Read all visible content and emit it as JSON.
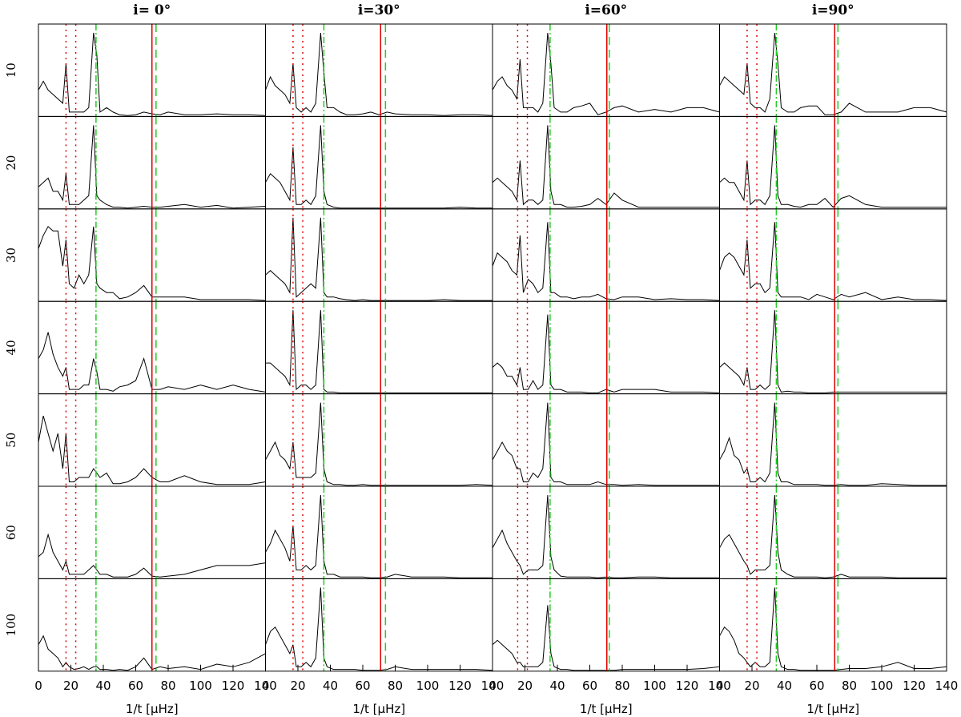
{
  "chart_data": {
    "type": "line",
    "line_color": "#000000",
    "x": [
      0,
      3,
      6,
      9,
      12,
      15,
      17,
      19,
      22,
      25,
      28,
      31,
      34,
      36,
      38,
      42,
      46,
      50,
      55,
      60,
      65,
      70,
      75,
      80,
      90,
      100,
      110,
      120,
      130,
      140
    ],
    "xlim": [
      0,
      140
    ],
    "xticks": [
      0,
      20,
      40,
      60,
      80,
      100,
      120,
      140
    ],
    "ylim": [
      0,
      1.05
    ],
    "xlabel": "1/t [μHz]",
    "columns": [
      {
        "title": "i= 0°",
        "vlines": [
          {
            "x": 17,
            "style": "dotted",
            "color": "#e00000"
          },
          {
            "x": 23,
            "style": "dotted",
            "color": "#e00000"
          },
          {
            "x": 35.5,
            "style": "dashdot",
            "color": "#22cc22"
          },
          {
            "x": 70,
            "style": "solid",
            "color": "#e00000"
          },
          {
            "x": 72.5,
            "style": "dashed",
            "color": "#22cc22"
          }
        ]
      },
      {
        "title": "i=30°",
        "vlines": [
          {
            "x": 17,
            "style": "dotted",
            "color": "#e00000"
          },
          {
            "x": 23,
            "style": "dotted",
            "color": "#e00000"
          },
          {
            "x": 36,
            "style": "dashdot",
            "color": "#22cc22"
          },
          {
            "x": 71,
            "style": "solid",
            "color": "#e00000"
          },
          {
            "x": 74,
            "style": "dashed",
            "color": "#22cc22"
          }
        ]
      },
      {
        "title": "i=60°",
        "vlines": [
          {
            "x": 15.5,
            "style": "dotted",
            "color": "#e00000"
          },
          {
            "x": 21.5,
            "style": "dotted",
            "color": "#e00000"
          },
          {
            "x": 35.5,
            "style": "dashdot",
            "color": "#22cc22"
          },
          {
            "x": 70.5,
            "style": "solid",
            "color": "#e00000"
          },
          {
            "x": 72,
            "style": "dashed",
            "color": "#22cc22"
          }
        ]
      },
      {
        "title": "i=90°",
        "vlines": [
          {
            "x": 17,
            "style": "dotted",
            "color": "#e00000"
          },
          {
            "x": 23,
            "style": "dotted",
            "color": "#e00000"
          },
          {
            "x": 35,
            "style": "dashdot",
            "color": "#22cc22"
          },
          {
            "x": 71,
            "style": "solid",
            "color": "#e00000"
          },
          {
            "x": 73,
            "style": "dashed",
            "color": "#22cc22"
          }
        ]
      }
    ],
    "row_labels": [
      "10",
      "20",
      "30",
      "40",
      "50",
      "60",
      "100"
    ],
    "panels": [
      [
        {
          "values": [
            0.3,
            0.4,
            0.3,
            0.25,
            0.2,
            0.15,
            0.6,
            0.05,
            0.05,
            0.05,
            0.05,
            0.1,
            0.95,
            0.7,
            0.05,
            0.1,
            0.05,
            0.02,
            0.01,
            0.02,
            0.05,
            0.03,
            0.02,
            0.05,
            0.02,
            0.02,
            0.03,
            0.02,
            0.02,
            0.01
          ]
        },
        {
          "values": [
            0.3,
            0.45,
            0.35,
            0.3,
            0.25,
            0.15,
            0.6,
            0.1,
            0.05,
            0.1,
            0.05,
            0.15,
            0.95,
            0.5,
            0.1,
            0.1,
            0.05,
            0.02,
            0.02,
            0.03,
            0.05,
            0.02,
            0.05,
            0.03,
            0.02,
            0.02,
            0.01,
            0.02,
            0.02,
            0.01
          ]
        },
        {
          "values": [
            0.3,
            0.4,
            0.45,
            0.35,
            0.3,
            0.2,
            0.65,
            0.1,
            0.1,
            0.1,
            0.05,
            0.15,
            0.95,
            0.6,
            0.1,
            0.05,
            0.05,
            0.1,
            0.12,
            0.15,
            0.02,
            0.05,
            0.1,
            0.12,
            0.05,
            0.08,
            0.05,
            0.1,
            0.1,
            0.05
          ]
        },
        {
          "values": [
            0.35,
            0.45,
            0.4,
            0.35,
            0.3,
            0.25,
            0.6,
            0.15,
            0.1,
            0.1,
            0.05,
            0.2,
            0.95,
            0.6,
            0.1,
            0.05,
            0.05,
            0.1,
            0.12,
            0.12,
            0.02,
            0.02,
            0.05,
            0.15,
            0.05,
            0.05,
            0.05,
            0.1,
            0.1,
            0.05
          ]
        }
      ],
      [
        {
          "values": [
            0.25,
            0.3,
            0.35,
            0.2,
            0.2,
            0.1,
            0.4,
            0.05,
            0.05,
            0.05,
            0.1,
            0.15,
            0.95,
            0.15,
            0.1,
            0.05,
            0.02,
            0.02,
            0.01,
            0.02,
            0.03,
            0.02,
            0.02,
            0.03,
            0.05,
            0.02,
            0.04,
            0.01,
            0.02,
            0.03
          ]
        },
        {
          "values": [
            0.3,
            0.4,
            0.35,
            0.3,
            0.2,
            0.1,
            0.7,
            0.05,
            0.05,
            0.1,
            0.05,
            0.15,
            0.95,
            0.2,
            0.05,
            0.02,
            0.01,
            0.01,
            0.01,
            0.01,
            0.01,
            0.01,
            0.01,
            0.01,
            0.01,
            0.01,
            0.01,
            0.02,
            0.01,
            0.01
          ]
        },
        {
          "values": [
            0.3,
            0.35,
            0.3,
            0.25,
            0.2,
            0.1,
            0.55,
            0.05,
            0.1,
            0.1,
            0.05,
            0.1,
            0.95,
            0.2,
            0.05,
            0.05,
            0.02,
            0.02,
            0.03,
            0.05,
            0.12,
            0.05,
            0.18,
            0.1,
            0.02,
            0.02,
            0.02,
            0.02,
            0.02,
            0.02
          ]
        },
        {
          "values": [
            0.3,
            0.35,
            0.3,
            0.3,
            0.2,
            0.1,
            0.55,
            0.05,
            0.1,
            0.1,
            0.05,
            0.15,
            0.95,
            0.15,
            0.05,
            0.05,
            0.03,
            0.02,
            0.05,
            0.05,
            0.12,
            0.02,
            0.12,
            0.15,
            0.05,
            0.02,
            0.02,
            0.02,
            0.02,
            0.02
          ]
        }
      ],
      [
        {
          "values": [
            0.6,
            0.75,
            0.85,
            0.8,
            0.8,
            0.4,
            0.7,
            0.2,
            0.15,
            0.3,
            0.2,
            0.3,
            0.85,
            0.2,
            0.15,
            0.1,
            0.1,
            0.03,
            0.05,
            0.1,
            0.18,
            0.05,
            0.05,
            0.05,
            0.05,
            0.02,
            0.02,
            0.02,
            0.02,
            0.01
          ]
        },
        {
          "values": [
            0.3,
            0.35,
            0.3,
            0.25,
            0.2,
            0.1,
            0.95,
            0.05,
            0.1,
            0.15,
            0.2,
            0.15,
            0.95,
            0.1,
            0.05,
            0.05,
            0.03,
            0.02,
            0.01,
            0.02,
            0.01,
            0.01,
            0.01,
            0.01,
            0.01,
            0.01,
            0.02,
            0.01,
            0.01,
            0.01
          ]
        },
        {
          "values": [
            0.4,
            0.55,
            0.5,
            0.45,
            0.35,
            0.3,
            0.75,
            0.1,
            0.25,
            0.2,
            0.1,
            0.15,
            0.9,
            0.1,
            0.1,
            0.05,
            0.05,
            0.03,
            0.05,
            0.05,
            0.08,
            0.03,
            0.02,
            0.05,
            0.05,
            0.02,
            0.03,
            0.02,
            0.02,
            0.01
          ]
        },
        {
          "values": [
            0.35,
            0.5,
            0.55,
            0.5,
            0.4,
            0.3,
            0.7,
            0.15,
            0.2,
            0.2,
            0.1,
            0.15,
            0.9,
            0.1,
            0.05,
            0.05,
            0.05,
            0.05,
            0.02,
            0.08,
            0.05,
            0.02,
            0.08,
            0.05,
            0.1,
            0.02,
            0.05,
            0.02,
            0.02,
            0.01
          ]
        }
      ],
      [
        {
          "values": [
            0.4,
            0.5,
            0.7,
            0.45,
            0.3,
            0.2,
            0.3,
            0.05,
            0.05,
            0.05,
            0.1,
            0.1,
            0.4,
            0.25,
            0.05,
            0.05,
            0.03,
            0.08,
            0.1,
            0.15,
            0.4,
            0.05,
            0.05,
            0.08,
            0.05,
            0.1,
            0.05,
            0.1,
            0.05,
            0.02
          ]
        },
        {
          "values": [
            0.35,
            0.35,
            0.3,
            0.25,
            0.2,
            0.1,
            0.95,
            0.05,
            0.1,
            0.1,
            0.05,
            0.1,
            0.95,
            0.05,
            0.02,
            0.02,
            0.01,
            0.01,
            0.01,
            0.01,
            0.01,
            0.01,
            0.01,
            0.01,
            0.01,
            0.01,
            0.01,
            0.01,
            0.01,
            0.01
          ]
        },
        {
          "values": [
            0.3,
            0.35,
            0.3,
            0.2,
            0.2,
            0.1,
            0.3,
            0.05,
            0.05,
            0.15,
            0.05,
            0.1,
            0.9,
            0.1,
            0.05,
            0.05,
            0.02,
            0.02,
            0.02,
            0.01,
            0.01,
            0.05,
            0.02,
            0.05,
            0.05,
            0.05,
            0.02,
            0.02,
            0.02,
            0.01
          ]
        },
        {
          "values": [
            0.3,
            0.35,
            0.3,
            0.25,
            0.2,
            0.1,
            0.3,
            0.05,
            0.05,
            0.1,
            0.05,
            0.1,
            0.95,
            0.1,
            0.02,
            0.03,
            0.02,
            0.02,
            0.01,
            0.01,
            0.01,
            0.02,
            0.02,
            0.02,
            0.02,
            0.02,
            0.02,
            0.02,
            0.02,
            0.02
          ]
        }
      ],
      [
        {
          "values": [
            0.5,
            0.8,
            0.6,
            0.4,
            0.6,
            0.2,
            0.6,
            0.05,
            0.05,
            0.1,
            0.1,
            0.1,
            0.2,
            0.15,
            0.1,
            0.15,
            0.03,
            0.03,
            0.05,
            0.1,
            0.2,
            0.1,
            0.05,
            0.05,
            0.12,
            0.05,
            0.02,
            0.02,
            0.02,
            0.05
          ]
        },
        {
          "values": [
            0.3,
            0.4,
            0.5,
            0.35,
            0.3,
            0.2,
            0.5,
            0.1,
            0.1,
            0.1,
            0.1,
            0.15,
            0.95,
            0.2,
            0.05,
            0.02,
            0.02,
            0.01,
            0.01,
            0.02,
            0.01,
            0.01,
            0.01,
            0.01,
            0.01,
            0.01,
            0.01,
            0.01,
            0.02,
            0.01
          ]
        },
        {
          "values": [
            0.3,
            0.4,
            0.5,
            0.4,
            0.35,
            0.2,
            0.2,
            0.05,
            0.05,
            0.15,
            0.1,
            0.2,
            0.95,
            0.1,
            0.05,
            0.05,
            0.02,
            0.02,
            0.02,
            0.02,
            0.05,
            0.02,
            0.02,
            0.01,
            0.02,
            0.01,
            0.01,
            0.01,
            0.01,
            0.01
          ]
        },
        {
          "values": [
            0.3,
            0.4,
            0.55,
            0.35,
            0.3,
            0.15,
            0.2,
            0.05,
            0.05,
            0.1,
            0.05,
            0.15,
            0.95,
            0.15,
            0.05,
            0.05,
            0.02,
            0.02,
            0.02,
            0.02,
            0.01,
            0.01,
            0.02,
            0.01,
            0.01,
            0.03,
            0.02,
            0.01,
            0.01,
            0.01
          ]
        }
      ],
      [
        {
          "values": [
            0.25,
            0.3,
            0.5,
            0.3,
            0.2,
            0.1,
            0.2,
            0.05,
            0.05,
            0.05,
            0.05,
            0.1,
            0.15,
            0.1,
            0.05,
            0.05,
            0.02,
            0.02,
            0.02,
            0.05,
            0.12,
            0.03,
            0.02,
            0.03,
            0.05,
            0.1,
            0.15,
            0.15,
            0.15,
            0.18
          ]
        },
        {
          "values": [
            0.3,
            0.4,
            0.55,
            0.45,
            0.35,
            0.2,
            0.6,
            0.1,
            0.1,
            0.15,
            0.1,
            0.15,
            0.95,
            0.2,
            0.05,
            0.05,
            0.02,
            0.02,
            0.02,
            0.02,
            0.01,
            0.01,
            0.02,
            0.05,
            0.02,
            0.02,
            0.02,
            0.01,
            0.01,
            0.01
          ]
        },
        {
          "values": [
            0.35,
            0.45,
            0.55,
            0.4,
            0.3,
            0.2,
            0.15,
            0.05,
            0.1,
            0.1,
            0.1,
            0.15,
            0.95,
            0.25,
            0.1,
            0.03,
            0.02,
            0.02,
            0.02,
            0.02,
            0.01,
            0.02,
            0.01,
            0.01,
            0.02,
            0.02,
            0.01,
            0.01,
            0.01,
            0.01
          ]
        },
        {
          "values": [
            0.35,
            0.45,
            0.5,
            0.4,
            0.3,
            0.2,
            0.15,
            0.05,
            0.1,
            0.1,
            0.1,
            0.15,
            0.95,
            0.3,
            0.1,
            0.05,
            0.02,
            0.02,
            0.02,
            0.02,
            0.01,
            0.02,
            0.05,
            0.02,
            0.02,
            0.02,
            0.01,
            0.01,
            0.01,
            0.01
          ]
        }
      ],
      [
        {
          "values": [
            0.3,
            0.4,
            0.25,
            0.2,
            0.15,
            0.05,
            0.1,
            0.05,
            0.02,
            0.03,
            0.05,
            0.02,
            0.05,
            0.05,
            0.02,
            0.02,
            0.01,
            0.02,
            0.01,
            0.05,
            0.15,
            0.02,
            0.05,
            0.03,
            0.05,
            0.02,
            0.08,
            0.05,
            0.1,
            0.2
          ]
        },
        {
          "values": [
            0.3,
            0.45,
            0.5,
            0.4,
            0.3,
            0.2,
            0.3,
            0.05,
            0.05,
            0.1,
            0.05,
            0.15,
            0.95,
            0.15,
            0.05,
            0.02,
            0.02,
            0.02,
            0.02,
            0.01,
            0.01,
            0.01,
            0.02,
            0.05,
            0.02,
            0.02,
            0.02,
            0.02,
            0.02,
            0.01
          ]
        },
        {
          "values": [
            0.3,
            0.35,
            0.3,
            0.25,
            0.2,
            0.1,
            0.1,
            0.05,
            0.05,
            0.05,
            0.05,
            0.1,
            0.75,
            0.2,
            0.05,
            0.02,
            0.02,
            0.01,
            0.01,
            0.01,
            0.01,
            0.01,
            0.01,
            0.02,
            0.02,
            0.02,
            0.02,
            0.02,
            0.03,
            0.05
          ]
        },
        {
          "values": [
            0.4,
            0.5,
            0.45,
            0.35,
            0.2,
            0.15,
            0.1,
            0.05,
            0.1,
            0.05,
            0.05,
            0.1,
            0.95,
            0.2,
            0.05,
            0.02,
            0.02,
            0.01,
            0.01,
            0.01,
            0.01,
            0.01,
            0.02,
            0.03,
            0.03,
            0.05,
            0.1,
            0.03,
            0.03,
            0.05
          ]
        }
      ]
    ]
  }
}
